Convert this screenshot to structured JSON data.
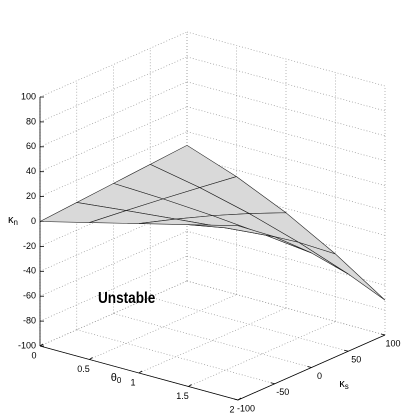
{
  "chart_data": {
    "type": "surface",
    "annotation": "Unstable",
    "xlabel": {
      "symbol": "θ",
      "subscript": "0"
    },
    "ylabel": {
      "symbol": "κ",
      "subscript": "s"
    },
    "zlabel": {
      "symbol": "κ",
      "subscript": "n"
    },
    "x": [
      0,
      0.5,
      1,
      1.5,
      2
    ],
    "y": [
      -100,
      -50,
      0,
      50,
      100
    ],
    "z": [
      [
        0,
        2.25,
        4.5,
        6.75,
        9
      ],
      [
        10,
        6.6,
        2.9,
        -1.1,
        -5.3
      ],
      [
        20,
        10.6,
        0.3,
        -11.1,
        -23.5
      ],
      [
        30,
        14.4,
        -3.4,
        -23.4,
        -45.8
      ],
      [
        40,
        18,
        -8,
        -38,
        -72
      ]
    ],
    "xlim": [
      0,
      2
    ],
    "xticks": [
      0,
      0.5,
      1,
      1.5,
      2
    ],
    "ylim": [
      -100,
      100
    ],
    "yticks": [
      -100,
      -50,
      0,
      50,
      100
    ],
    "zlim": [
      -100,
      100
    ],
    "zticks": [
      -100,
      -80,
      -60,
      -40,
      -20,
      0,
      20,
      40,
      60,
      80,
      100
    ],
    "grid": true,
    "color": "#d9d9d9"
  }
}
